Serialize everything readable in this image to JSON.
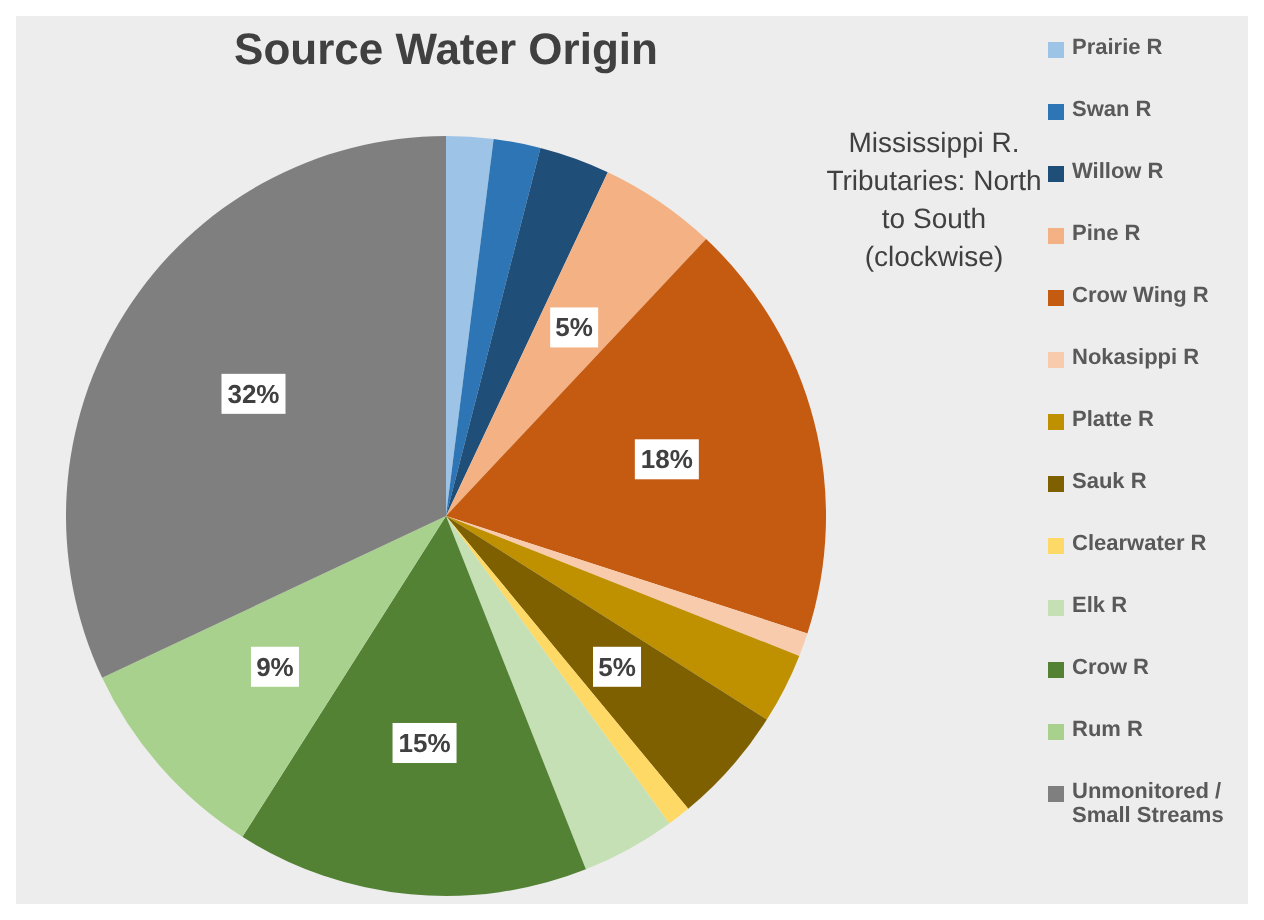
{
  "chart_data": {
    "type": "pie",
    "title": "Source Water Origin",
    "categories": [
      "Prairie R",
      "Swan R",
      "Willow R",
      "Pine R",
      "Crow Wing R",
      "Nokasippi R",
      "Platte R",
      "Sauk R",
      "Clearwater R",
      "Elk R",
      "Crow R",
      "Rum R",
      "Unmonitored / Small Streams"
    ],
    "values": [
      2,
      2,
      3,
      5,
      18,
      1,
      3,
      5,
      1,
      4,
      15,
      9,
      32
    ],
    "value_labels": [
      null,
      null,
      null,
      "5%",
      "18%",
      null,
      null,
      "5%",
      null,
      null,
      "15%",
      "9%",
      "32%"
    ],
    "colors": [
      "#9dc3e6",
      "#2e75b6",
      "#1f4e79",
      "#f4b183",
      "#c55a11",
      "#f8cbad",
      "#bf9000",
      "#7f6000",
      "#ffd966",
      "#c5e0b4",
      "#548235",
      "#a9d18e",
      "#7f7f7f"
    ],
    "legend": "right",
    "annotations": [
      "Mississippi R. Tributaries: North to South (clockwise)"
    ]
  }
}
